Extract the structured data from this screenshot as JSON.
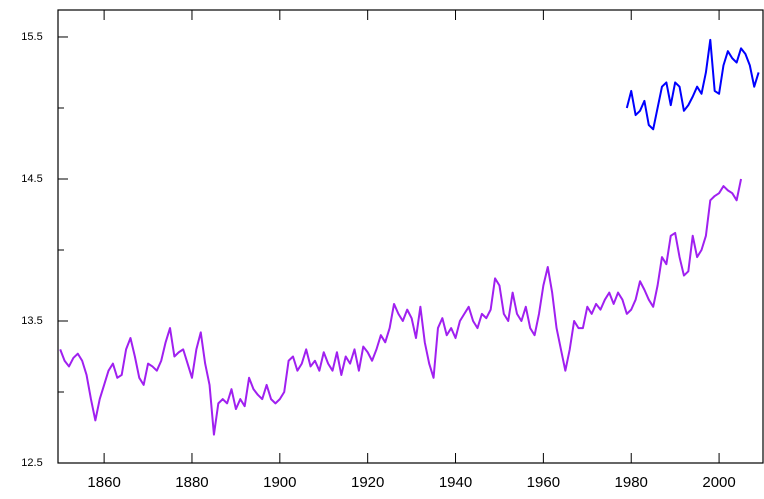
{
  "chart_data": {
    "type": "line",
    "series": [
      {
        "color": "#a020f0",
        "x": [
          1850,
          1851,
          1852,
          1853,
          1854,
          1855,
          1856,
          1857,
          1858,
          1859,
          1860,
          1861,
          1862,
          1863,
          1864,
          1865,
          1866,
          1867,
          1868,
          1869,
          1870,
          1871,
          1872,
          1873,
          1874,
          1875,
          1876,
          1877,
          1878,
          1879,
          1880,
          1881,
          1882,
          1883,
          1884,
          1885,
          1886,
          1887,
          1888,
          1889,
          1890,
          1891,
          1892,
          1893,
          1894,
          1895,
          1896,
          1897,
          1898,
          1899,
          1900,
          1901,
          1902,
          1903,
          1904,
          1905,
          1906,
          1907,
          1908,
          1909,
          1910,
          1911,
          1912,
          1913,
          1914,
          1915,
          1916,
          1917,
          1918,
          1919,
          1920,
          1921,
          1922,
          1923,
          1924,
          1925,
          1926,
          1927,
          1928,
          1929,
          1930,
          1931,
          1932,
          1933,
          1934,
          1935,
          1936,
          1937,
          1938,
          1939,
          1940,
          1941,
          1942,
          1943,
          1944,
          1945,
          1946,
          1947,
          1948,
          1949,
          1950,
          1951,
          1952,
          1953,
          1954,
          1955,
          1956,
          1957,
          1958,
          1959,
          1960,
          1961,
          1962,
          1963,
          1964,
          1965,
          1966,
          1967,
          1968,
          1969,
          1970,
          1971,
          1972,
          1973,
          1974,
          1975,
          1976,
          1977,
          1978,
          1979,
          1980,
          1981,
          1982,
          1983,
          1984,
          1985,
          1986,
          1987,
          1988,
          1989,
          1990,
          1991,
          1992,
          1993,
          1994,
          1995,
          1996,
          1997,
          1998,
          1999,
          2000,
          2001,
          2002,
          2003,
          2004,
          2005
        ],
        "values": [
          13.3,
          13.22,
          13.18,
          13.24,
          13.27,
          13.22,
          13.12,
          12.95,
          12.8,
          12.95,
          13.05,
          13.15,
          13.2,
          13.1,
          13.12,
          13.3,
          13.38,
          13.25,
          13.1,
          13.05,
          13.2,
          13.18,
          13.15,
          13.22,
          13.35,
          13.45,
          13.25,
          13.28,
          13.3,
          13.2,
          13.1,
          13.3,
          13.42,
          13.2,
          13.05,
          12.7,
          12.92,
          12.95,
          12.92,
          13.02,
          12.88,
          12.95,
          12.9,
          13.1,
          13.02,
          12.98,
          12.95,
          13.05,
          12.95,
          12.92,
          12.95,
          13.0,
          13.22,
          13.25,
          13.15,
          13.2,
          13.3,
          13.18,
          13.22,
          13.15,
          13.28,
          13.2,
          13.15,
          13.28,
          13.12,
          13.25,
          13.2,
          13.3,
          13.15,
          13.32,
          13.28,
          13.22,
          13.3,
          13.4,
          13.35,
          13.45,
          13.62,
          13.55,
          13.5,
          13.58,
          13.52,
          13.38,
          13.6,
          13.35,
          13.2,
          13.1,
          13.45,
          13.52,
          13.4,
          13.45,
          13.38,
          13.5,
          13.55,
          13.6,
          13.5,
          13.45,
          13.55,
          13.52,
          13.58,
          13.8,
          13.75,
          13.55,
          13.5,
          13.7,
          13.55,
          13.5,
          13.6,
          13.45,
          13.4,
          13.55,
          13.75,
          13.88,
          13.7,
          13.45,
          13.3,
          13.15,
          13.3,
          13.5,
          13.45,
          13.45,
          13.6,
          13.55,
          13.62,
          13.58,
          13.65,
          13.7,
          13.62,
          13.7,
          13.65,
          13.55,
          13.58,
          13.65,
          13.78,
          13.72,
          13.65,
          13.6,
          13.75,
          13.95,
          13.9,
          14.1,
          14.12,
          13.95,
          13.82,
          13.85,
          14.1,
          13.95,
          14.0,
          14.1,
          14.35,
          14.38,
          14.4,
          14.45,
          14.42,
          14.4,
          14.35,
          14.5
        ]
      },
      {
        "color": "#0000ff",
        "x": [
          1979,
          1980,
          1981,
          1982,
          1983,
          1984,
          1985,
          1986,
          1987,
          1988,
          1989,
          1990,
          1991,
          1992,
          1993,
          1994,
          1995,
          1996,
          1997,
          1998,
          1999,
          2000,
          2001,
          2002,
          2003,
          2004,
          2005,
          2006,
          2007,
          2008,
          2009
        ],
        "values": [
          15.0,
          15.12,
          14.95,
          14.98,
          15.05,
          14.88,
          14.85,
          15.0,
          15.15,
          15.18,
          15.02,
          15.18,
          15.15,
          14.98,
          15.02,
          15.08,
          15.15,
          15.1,
          15.25,
          15.48,
          15.12,
          15.1,
          15.3,
          15.4,
          15.35,
          15.32,
          15.42,
          15.38,
          15.3,
          15.15,
          15.25
        ]
      }
    ],
    "xlim": [
      1849.5,
      2010
    ],
    "xticks": [
      1860,
      1880,
      1900,
      1920,
      1940,
      1960,
      1980,
      2000
    ],
    "ylim": [
      12.5,
      15.69
    ],
    "yticks": [
      12.5,
      13.5,
      14.5,
      15.5
    ],
    "yminor_ticks": [
      13,
      14,
      15
    ]
  }
}
